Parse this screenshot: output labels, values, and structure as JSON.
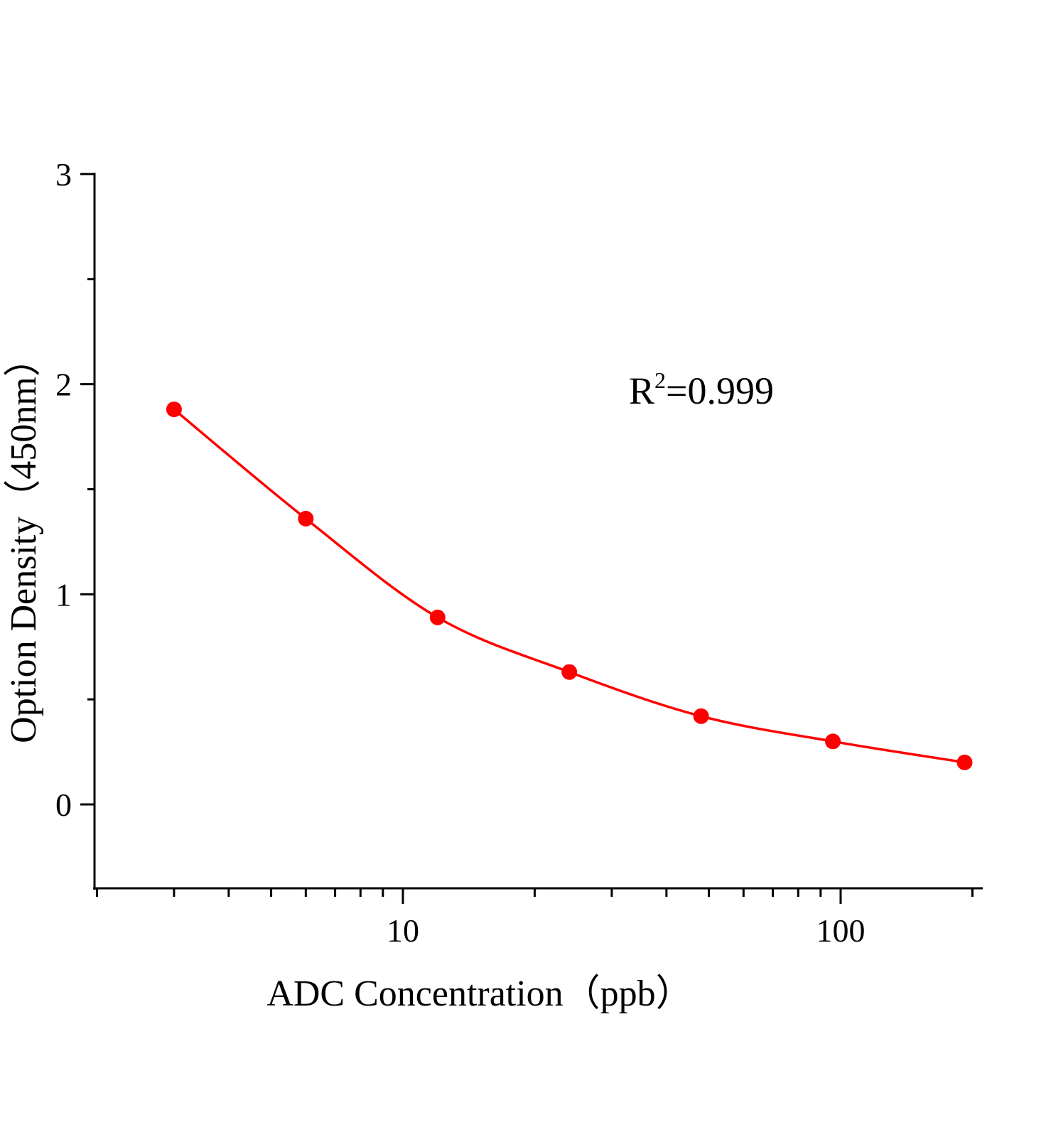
{
  "chart_data": {
    "type": "scatter",
    "title": "",
    "xlabel": "ADC Concentration（ppb）",
    "ylabel": "Option Density（450nm）",
    "xscale": "log",
    "xlim": [
      2,
      200
    ],
    "ylim": [
      -0.4,
      3
    ],
    "xticks": [
      10,
      100
    ],
    "xtick_labels": [
      "10",
      "100"
    ],
    "yticks": [
      0,
      1,
      2,
      3
    ],
    "ytick_labels": [
      "0",
      "1",
      "2",
      "3"
    ],
    "grid": false,
    "annotation": {
      "base": "R",
      "sup": "2",
      "rest": "=0.999"
    },
    "series": [
      {
        "x": [
          3,
          6,
          12,
          24,
          48,
          96,
          192
        ],
        "y": [
          1.88,
          1.36,
          0.89,
          0.63,
          0.42,
          0.3,
          0.2
        ],
        "color": "#ff0000",
        "fit": "smooth curve"
      }
    ]
  }
}
